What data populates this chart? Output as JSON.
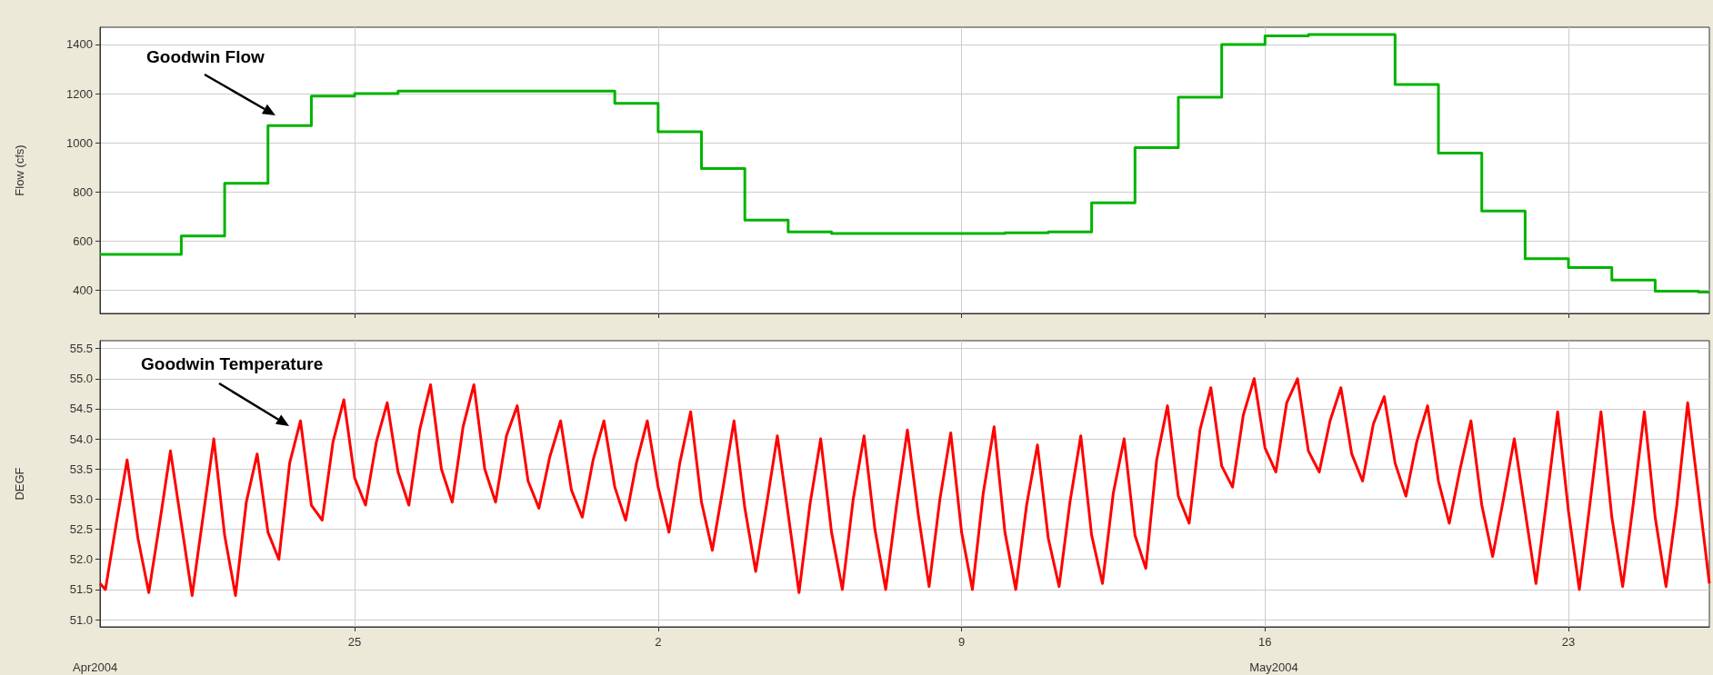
{
  "chart_data": [
    {
      "type": "step",
      "ylabel": "Flow (cfs)",
      "annotations": [
        "Goodwin Flow"
      ],
      "x": [
        "2004-04-19T03:00",
        "2004-04-21",
        "2004-04-22",
        "2004-04-23",
        "2004-04-24",
        "2004-04-25",
        "2004-04-26",
        "2004-05-01",
        "2004-05-02",
        "2004-05-03",
        "2004-05-04",
        "2004-05-05",
        "2004-05-06",
        "2004-05-10",
        "2004-05-11",
        "2004-05-12",
        "2004-05-13",
        "2004-05-14",
        "2004-05-15",
        "2004-05-16",
        "2004-05-17",
        "2004-05-19",
        "2004-05-20",
        "2004-05-21",
        "2004-05-22",
        "2004-05-23",
        "2004-05-24",
        "2004-05-25",
        "2004-05-26",
        "2004-05-26T06:00"
      ],
      "series": [
        {
          "color": "#00b400",
          "values": [
            545,
            620,
            835,
            1070,
            1190,
            1200,
            1210,
            1160,
            1045,
            895,
            685,
            637,
            630,
            633,
            637,
            755,
            980,
            1185,
            1400,
            1435,
            1440,
            1237,
            958,
            722,
            528,
            492,
            441,
            396,
            392,
            392
          ]
        }
      ],
      "xlim": [
        "2004-04-19T03:00",
        "2004-05-26T06:00"
      ],
      "xticks": [
        "2004-04-25",
        "2004-05-02",
        "2004-05-09",
        "2004-05-16",
        "2004-05-23"
      ],
      "ylim": [
        305,
        1470
      ],
      "yticks": [
        400,
        600,
        800,
        1000,
        1200,
        1400
      ],
      "grid": true,
      "tick_labels": "y"
    },
    {
      "type": "line",
      "ylabel": "DEGF",
      "annotations": [
        "Goodwin Temperature",
        "Apr2004",
        "May2004"
      ],
      "x": [
        "2004-04-19T03:00",
        "2004-04-19T06:00",
        "2004-04-19T12:00",
        "2004-04-19T18:00",
        "2004-04-20T00:00",
        "2004-04-20T06:00",
        "2004-04-20T12:00",
        "2004-04-20T18:00",
        "2004-04-21T00:00",
        "2004-04-21T06:00",
        "2004-04-21T12:00",
        "2004-04-21T18:00",
        "2004-04-22T00:00",
        "2004-04-22T06:00",
        "2004-04-22T12:00",
        "2004-04-22T18:00",
        "2004-04-23T00:00",
        "2004-04-23T06:00",
        "2004-04-23T12:00",
        "2004-04-23T18:00",
        "2004-04-24T00:00",
        "2004-04-24T06:00",
        "2004-04-24T12:00",
        "2004-04-24T18:00",
        "2004-04-25T00:00",
        "2004-04-25T06:00",
        "2004-04-25T12:00",
        "2004-04-25T18:00",
        "2004-04-26T00:00",
        "2004-04-26T06:00",
        "2004-04-26T12:00",
        "2004-04-26T18:00",
        "2004-04-27T00:00",
        "2004-04-27T06:00",
        "2004-04-27T12:00",
        "2004-04-27T18:00",
        "2004-04-28T00:00",
        "2004-04-28T06:00",
        "2004-04-28T12:00",
        "2004-04-28T18:00",
        "2004-04-29T00:00",
        "2004-04-29T06:00",
        "2004-04-29T12:00",
        "2004-04-29T18:00",
        "2004-04-30T00:00",
        "2004-04-30T06:00",
        "2004-04-30T12:00",
        "2004-04-30T18:00",
        "2004-05-01T00:00",
        "2004-05-01T06:00",
        "2004-05-01T12:00",
        "2004-05-01T18:00",
        "2004-05-02T00:00",
        "2004-05-02T06:00",
        "2004-05-02T12:00",
        "2004-05-02T18:00",
        "2004-05-03T00:00",
        "2004-05-03T06:00",
        "2004-05-03T12:00",
        "2004-05-03T18:00",
        "2004-05-04T00:00",
        "2004-05-04T06:00",
        "2004-05-04T12:00",
        "2004-05-04T18:00",
        "2004-05-05T00:00",
        "2004-05-05T06:00",
        "2004-05-05T12:00",
        "2004-05-05T18:00",
        "2004-05-06T00:00",
        "2004-05-06T06:00",
        "2004-05-06T12:00",
        "2004-05-06T18:00",
        "2004-05-07T00:00",
        "2004-05-07T06:00",
        "2004-05-07T12:00",
        "2004-05-07T18:00",
        "2004-05-08T00:00",
        "2004-05-08T06:00",
        "2004-05-08T12:00",
        "2004-05-08T18:00",
        "2004-05-09T00:00",
        "2004-05-09T06:00",
        "2004-05-09T12:00",
        "2004-05-09T18:00",
        "2004-05-10T00:00",
        "2004-05-10T06:00",
        "2004-05-10T12:00",
        "2004-05-10T18:00",
        "2004-05-11T00:00",
        "2004-05-11T06:00",
        "2004-05-11T12:00",
        "2004-05-11T18:00",
        "2004-05-12T00:00",
        "2004-05-12T06:00",
        "2004-05-12T12:00",
        "2004-05-12T18:00",
        "2004-05-13T00:00",
        "2004-05-13T06:00",
        "2004-05-13T12:00",
        "2004-05-13T18:00",
        "2004-05-14T00:00",
        "2004-05-14T06:00",
        "2004-05-14T12:00",
        "2004-05-14T18:00",
        "2004-05-15T00:00",
        "2004-05-15T06:00",
        "2004-05-15T12:00",
        "2004-05-15T18:00",
        "2004-05-16T00:00",
        "2004-05-16T06:00",
        "2004-05-16T12:00",
        "2004-05-16T18:00",
        "2004-05-17T00:00",
        "2004-05-17T06:00",
        "2004-05-17T12:00",
        "2004-05-17T18:00",
        "2004-05-18T00:00",
        "2004-05-18T06:00",
        "2004-05-18T12:00",
        "2004-05-18T18:00",
        "2004-05-19T00:00",
        "2004-05-19T06:00",
        "2004-05-19T12:00",
        "2004-05-19T18:00",
        "2004-05-20T00:00",
        "2004-05-20T06:00",
        "2004-05-20T12:00",
        "2004-05-20T18:00",
        "2004-05-21T00:00",
        "2004-05-21T06:00",
        "2004-05-21T12:00",
        "2004-05-21T18:00",
        "2004-05-22T00:00",
        "2004-05-22T06:00",
        "2004-05-22T12:00",
        "2004-05-22T18:00",
        "2004-05-23T00:00",
        "2004-05-23T06:00",
        "2004-05-23T12:00",
        "2004-05-23T18:00",
        "2004-05-24T00:00",
        "2004-05-24T06:00",
        "2004-05-24T12:00",
        "2004-05-24T18:00",
        "2004-05-25T00:00",
        "2004-05-25T06:00",
        "2004-05-25T12:00",
        "2004-05-25T18:00",
        "2004-05-26T00:00",
        "2004-05-26T06:00"
      ],
      "series": [
        {
          "color": "#ff0000",
          "values": [
            51.6,
            51.5,
            52.6,
            53.65,
            52.35,
            51.45,
            52.6,
            53.8,
            52.6,
            51.4,
            52.7,
            54.0,
            52.4,
            51.4,
            52.95,
            53.75,
            52.45,
            52.0,
            53.6,
            54.3,
            52.9,
            52.65,
            53.95,
            54.65,
            53.35,
            52.9,
            53.95,
            54.6,
            53.45,
            52.9,
            54.15,
            54.9,
            53.5,
            52.95,
            54.2,
            54.9,
            53.5,
            52.95,
            54.05,
            54.55,
            53.3,
            52.85,
            53.7,
            54.3,
            53.15,
            52.7,
            53.65,
            54.3,
            53.2,
            52.65,
            53.6,
            54.3,
            53.2,
            52.45,
            53.6,
            54.45,
            52.95,
            52.15,
            53.2,
            54.3,
            52.85,
            51.8,
            52.9,
            54.05,
            52.75,
            51.45,
            52.9,
            54.0,
            52.45,
            51.5,
            53.0,
            54.05,
            52.5,
            51.5,
            52.9,
            54.15,
            52.75,
            51.55,
            53.0,
            54.1,
            52.45,
            51.5,
            53.1,
            54.2,
            52.45,
            51.5,
            52.9,
            53.9,
            52.35,
            51.55,
            52.95,
            54.05,
            52.4,
            51.6,
            53.1,
            54.0,
            52.4,
            51.85,
            53.65,
            54.55,
            53.05,
            52.6,
            54.15,
            54.85,
            53.55,
            53.2,
            54.4,
            55.0,
            53.85,
            53.45,
            54.6,
            55.0,
            53.8,
            53.45,
            54.3,
            54.85,
            53.75,
            53.3,
            54.25,
            54.7,
            53.6,
            53.05,
            53.95,
            54.55,
            53.3,
            52.6,
            53.5,
            54.3,
            52.9,
            52.05,
            53.0,
            54.0,
            52.8,
            51.6,
            53.0,
            54.45,
            52.8,
            51.5,
            52.95,
            54.45,
            52.7,
            51.55,
            52.95,
            54.45,
            52.7,
            51.55,
            52.9,
            54.6,
            53.1,
            51.6
          ]
        }
      ],
      "xlim": [
        "2004-04-19T03:00",
        "2004-05-26T06:00"
      ],
      "xticks": [
        {
          "value": "2004-04-25",
          "label": "25"
        },
        {
          "value": "2004-05-02",
          "label": "2"
        },
        {
          "value": "2004-05-09",
          "label": "9"
        },
        {
          "value": "2004-05-16",
          "label": "16"
        },
        {
          "value": "2004-05-23",
          "label": "23"
        }
      ],
      "ylim": [
        50.88,
        55.63
      ],
      "yticks": [
        {
          "value": 51,
          "label": "51.0"
        },
        {
          "value": 51.5,
          "label": "51.5"
        },
        {
          "value": 52,
          "label": "52.0"
        },
        {
          "value": 52.5,
          "label": "52.5"
        },
        {
          "value": 53,
          "label": "53.0"
        },
        {
          "value": 53.5,
          "label": "53.5"
        },
        {
          "value": 54,
          "label": "54.0"
        },
        {
          "value": 54.5,
          "label": "54.5"
        },
        {
          "value": 55,
          "label": "55.0"
        },
        {
          "value": 55.5,
          "label": "55.5"
        }
      ],
      "grid": true
    }
  ]
}
